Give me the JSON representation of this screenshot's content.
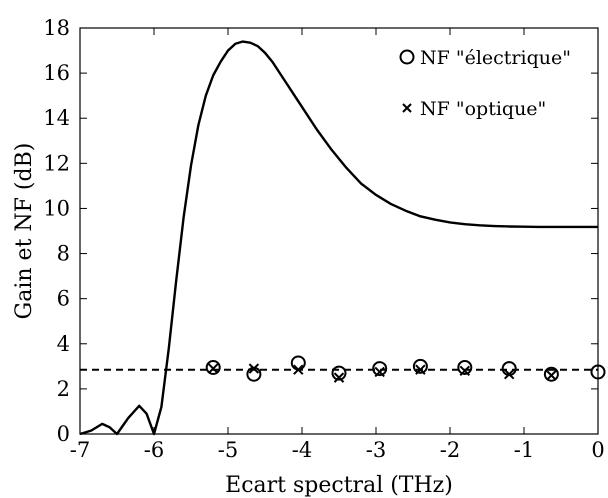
{
  "chart_data": {
    "type": "line",
    "xlabel": "Ecart spectral (THz)",
    "ylabel": "Gain et NF (dB)",
    "xlim": [
      -7,
      0
    ],
    "ylim": [
      0,
      18
    ],
    "x_ticks": [
      -7,
      -6,
      -5,
      -4,
      -3,
      -2,
      -1,
      0
    ],
    "x_tick_labels": [
      "-7",
      "-6",
      "-5",
      "-4",
      "-3",
      "-2",
      "-1",
      "0"
    ],
    "y_ticks": [
      0,
      2,
      4,
      6,
      8,
      10,
      12,
      14,
      16,
      18
    ],
    "y_tick_labels": [
      "0",
      "2",
      "4",
      "6",
      "8",
      "10",
      "12",
      "14",
      "16",
      "18"
    ],
    "grid": false,
    "legend_position": "top-right",
    "series": [
      {
        "key": "gain",
        "style": "solid-line",
        "color": "#000000",
        "x": [
          -7.0,
          -6.85,
          -6.7,
          -6.6,
          -6.5,
          -6.35,
          -6.2,
          -6.1,
          -6.0,
          -5.9,
          -5.8,
          -5.7,
          -5.6,
          -5.5,
          -5.4,
          -5.3,
          -5.2,
          -5.1,
          -5.0,
          -4.9,
          -4.8,
          -4.7,
          -4.6,
          -4.5,
          -4.4,
          -4.3,
          -4.2,
          -4.1,
          -4.0,
          -3.8,
          -3.6,
          -3.4,
          -3.2,
          -3.0,
          -2.8,
          -2.6,
          -2.4,
          -2.2,
          -2.0,
          -1.8,
          -1.6,
          -1.4,
          -1.2,
          -1.0,
          -0.8,
          -0.6,
          -0.4,
          -0.2,
          0.0
        ],
        "y": [
          0.0,
          0.15,
          0.45,
          0.3,
          0.0,
          0.7,
          1.25,
          0.9,
          0.0,
          1.2,
          3.8,
          6.8,
          9.6,
          11.9,
          13.7,
          15.0,
          15.9,
          16.5,
          17.0,
          17.3,
          17.4,
          17.35,
          17.2,
          16.9,
          16.5,
          16.0,
          15.5,
          15.0,
          14.5,
          13.5,
          12.6,
          11.8,
          11.1,
          10.6,
          10.2,
          9.9,
          9.65,
          9.5,
          9.38,
          9.3,
          9.25,
          9.22,
          9.2,
          9.19,
          9.18,
          9.18,
          9.18,
          9.18,
          9.18
        ]
      },
      {
        "key": "mean",
        "style": "dashed-line",
        "color": "#000000",
        "x": [
          -7.0,
          0.0
        ],
        "y": [
          2.85,
          2.85
        ]
      },
      {
        "key": "nf_electrique",
        "name": "NF \"électrique\"",
        "style": "circle-marker",
        "color": "#000000",
        "x": [
          -5.2,
          -4.65,
          -4.05,
          -3.5,
          -2.95,
          -2.4,
          -1.8,
          -1.2,
          -0.63,
          0.0
        ],
        "y": [
          2.95,
          2.65,
          3.15,
          2.7,
          2.9,
          3.0,
          2.95,
          2.9,
          2.65,
          2.75
        ]
      },
      {
        "key": "nf_optique",
        "name": "NF \"optique\"",
        "style": "x-marker",
        "color": "#000000",
        "x": [
          -5.2,
          -4.65,
          -4.05,
          -3.5,
          -2.95,
          -2.4,
          -1.8,
          -1.2,
          -0.63
        ],
        "y": [
          2.9,
          2.9,
          2.85,
          2.5,
          2.75,
          2.85,
          2.8,
          2.65,
          2.6
        ]
      }
    ]
  }
}
